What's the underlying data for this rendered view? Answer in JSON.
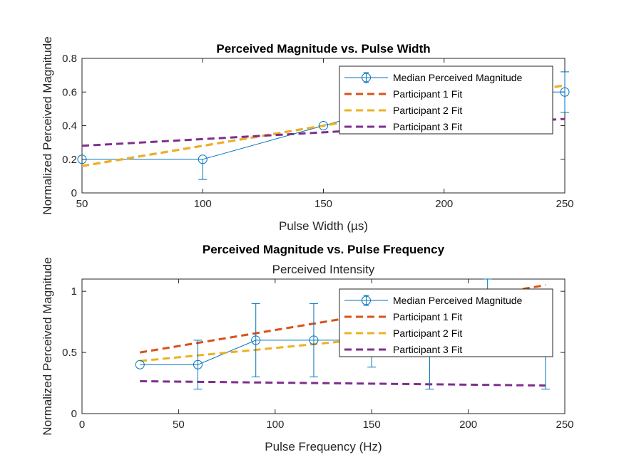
{
  "chart_data": [
    {
      "type": "line",
      "title": "Perceived Magnitude vs. Pulse Width",
      "subtitle": "",
      "xlabel": "Pulse Width (µs)",
      "ylabel": "Normalized Perceived Magnitude",
      "xlim": [
        50,
        250
      ],
      "ylim": [
        0,
        0.8
      ],
      "xticks": [
        50,
        100,
        150,
        200,
        250
      ],
      "yticks": [
        0,
        0.2,
        0.4,
        0.6,
        0.8
      ],
      "xtick_labels": [
        "50",
        "100",
        "150",
        "200",
        "250"
      ],
      "ytick_labels": [
        "0",
        "0.2",
        "0.4",
        "0.6",
        "0.8"
      ],
      "grid": false,
      "legend_position": "top-right",
      "series": [
        {
          "name": "Median Perceived Magnitude",
          "style": "line-errorbar-circle",
          "color": "#0072BD",
          "x": [
            50,
            100,
            150,
            200,
            250
          ],
          "y": [
            0.2,
            0.2,
            0.4,
            0.6,
            0.6
          ],
          "err_low": [
            0,
            0.12,
            0,
            0.12,
            0.12
          ],
          "err_high": [
            0,
            0,
            0,
            0.12,
            0.12
          ]
        },
        {
          "name": "Participant 1 Fit",
          "style": "dashed",
          "color": "#D95319",
          "x": [
            50,
            100,
            150,
            200,
            250
          ],
          "y": [
            0.16,
            0.28,
            0.4,
            0.52,
            0.64
          ]
        },
        {
          "name": "Participant 2 Fit",
          "style": "dashed",
          "color": "#EDB120",
          "x": [
            50,
            100,
            150,
            200,
            250
          ],
          "y": [
            0.16,
            0.28,
            0.4,
            0.52,
            0.64
          ]
        },
        {
          "name": "Participant 3 Fit",
          "style": "dashed",
          "color": "#7E2F8E",
          "x": [
            50,
            100,
            150,
            200,
            250
          ],
          "y": [
            0.28,
            0.32,
            0.36,
            0.4,
            0.44
          ]
        }
      ]
    },
    {
      "type": "line",
      "title": "Perceived Magnitude vs. Pulse Frequency",
      "subtitle": "Perceived Intensity",
      "xlabel": "Pulse Frequency (Hz)",
      "ylabel": "Normalized Perceived Magnitude",
      "xlim": [
        0,
        250
      ],
      "ylim": [
        0,
        1.1
      ],
      "xticks": [
        0,
        50,
        100,
        150,
        200,
        250
      ],
      "yticks": [
        0,
        0.5,
        1
      ],
      "xtick_labels": [
        "0",
        "50",
        "100",
        "150",
        "200",
        "250"
      ],
      "ytick_labels": [
        "0",
        "0.5",
        "1"
      ],
      "grid": false,
      "legend_position": "top-right",
      "series": [
        {
          "name": "Median Perceived Magnitude",
          "style": "line-errorbar-circle",
          "color": "#0072BD",
          "x": [
            30,
            60,
            90,
            120,
            150,
            180,
            210,
            240
          ],
          "y": [
            0.4,
            0.4,
            0.6,
            0.6,
            0.6,
            0.6,
            0.8,
            0.6
          ],
          "err_low": [
            0,
            0.2,
            0.3,
            0.3,
            0.22,
            0.4,
            0.3,
            0.4
          ],
          "err_high": [
            0,
            0.2,
            0.3,
            0.3,
            0.3,
            0.3,
            0.3,
            0.3
          ]
        },
        {
          "name": "Participant 1 Fit",
          "style": "dashed",
          "color": "#D95319",
          "x": [
            30,
            240
          ],
          "y": [
            0.5,
            1.05
          ]
        },
        {
          "name": "Participant 2 Fit",
          "style": "dashed",
          "color": "#EDB120",
          "x": [
            30,
            240
          ],
          "y": [
            0.43,
            0.75
          ]
        },
        {
          "name": "Participant 3 Fit",
          "style": "dashed",
          "color": "#7E2F8E",
          "x": [
            30,
            240
          ],
          "y": [
            0.265,
            0.23
          ]
        }
      ]
    }
  ]
}
